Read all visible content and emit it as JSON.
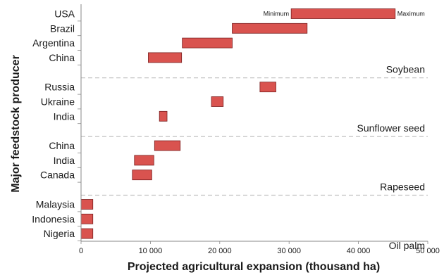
{
  "chart_data": {
    "type": "bar",
    "orientation": "horizontal",
    "style": "floating-range",
    "xlabel": "Projected agricultural expansion (thousand ha)",
    "ylabel": "Major feedstock producer",
    "xlim": [
      0,
      50000
    ],
    "xticks": [
      0,
      10000,
      20000,
      30000,
      40000,
      50000
    ],
    "xtick_labels": [
      "0",
      "10 000",
      "20 000",
      "30 000",
      "40 000",
      "50 000"
    ],
    "annotations": {
      "min_label": "Minimum",
      "max_label": "Maximum"
    },
    "bar_color": "#d9534f",
    "bar_edge_color": "#7a2020",
    "separator_color": "#bfbfbf",
    "groups": [
      {
        "name": "Soybean",
        "rows": [
          {
            "label": "USA",
            "min": 30300,
            "max": 45300
          },
          {
            "label": "Brazil",
            "min": 21800,
            "max": 32600
          },
          {
            "label": "Argentina",
            "min": 14600,
            "max": 21800
          },
          {
            "label": "China",
            "min": 9700,
            "max": 14500
          }
        ]
      },
      {
        "name": "Sunflower seed",
        "rows": [
          {
            "label": "Russia",
            "min": 25800,
            "max": 28100
          },
          {
            "label": "Ukraine",
            "min": 18800,
            "max": 20500
          },
          {
            "label": "India",
            "min": 11300,
            "max": 12400
          }
        ]
      },
      {
        "name": "Rapeseed",
        "rows": [
          {
            "label": "China",
            "min": 10600,
            "max": 14300
          },
          {
            "label": "India",
            "min": 7700,
            "max": 10500
          },
          {
            "label": "Canada",
            "min": 7400,
            "max": 10200
          }
        ]
      },
      {
        "name": "Oil palm",
        "rows": [
          {
            "label": "Malaysia",
            "min": 0,
            "max": 1700
          },
          {
            "label": "Indonesia",
            "min": 0,
            "max": 1700
          },
          {
            "label": "Nigeria",
            "min": 0,
            "max": 1700
          }
        ]
      }
    ]
  }
}
